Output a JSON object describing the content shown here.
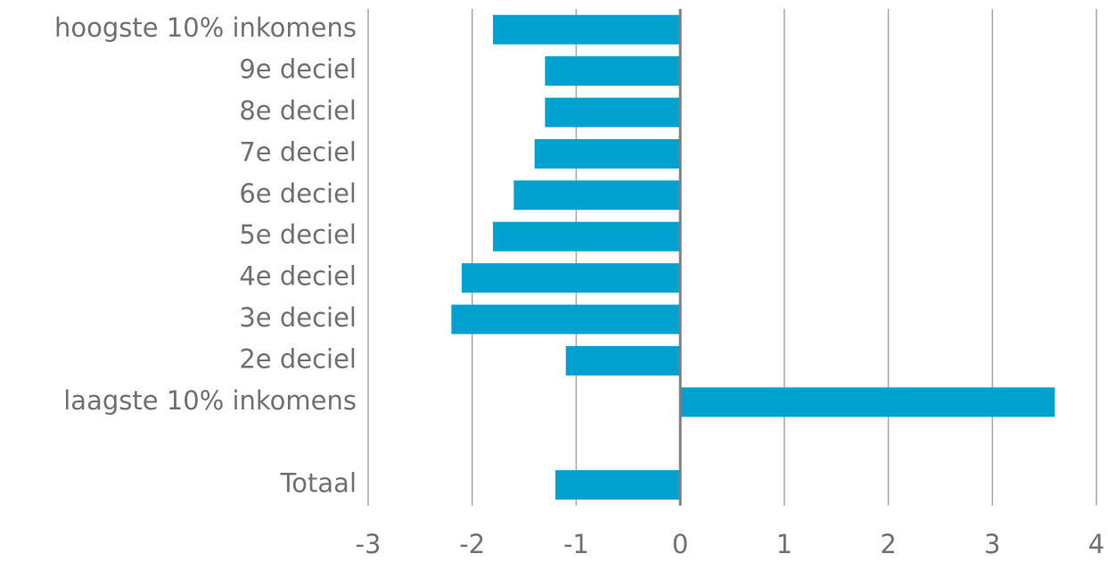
{
  "chart_data": {
    "type": "barh",
    "categories": [
      "hoogste 10% inkomens",
      "9e deciel",
      "8e deciel",
      "7e deciel",
      "6e deciel",
      "5e deciel",
      "4e deciel",
      "3e deciel",
      "2e deciel",
      "laagste 10% inkomens",
      null,
      "Totaal"
    ],
    "values": [
      -1.8,
      -1.3,
      -1.3,
      -1.4,
      -1.6,
      -1.8,
      -2.1,
      -2.2,
      -1.1,
      3.6,
      null,
      -1.2
    ],
    "color": "#00a0cf",
    "xlim": [
      -3,
      4
    ],
    "xticks": [
      -3,
      -2,
      -1,
      0,
      1,
      2,
      3,
      4
    ],
    "grid": true
  }
}
